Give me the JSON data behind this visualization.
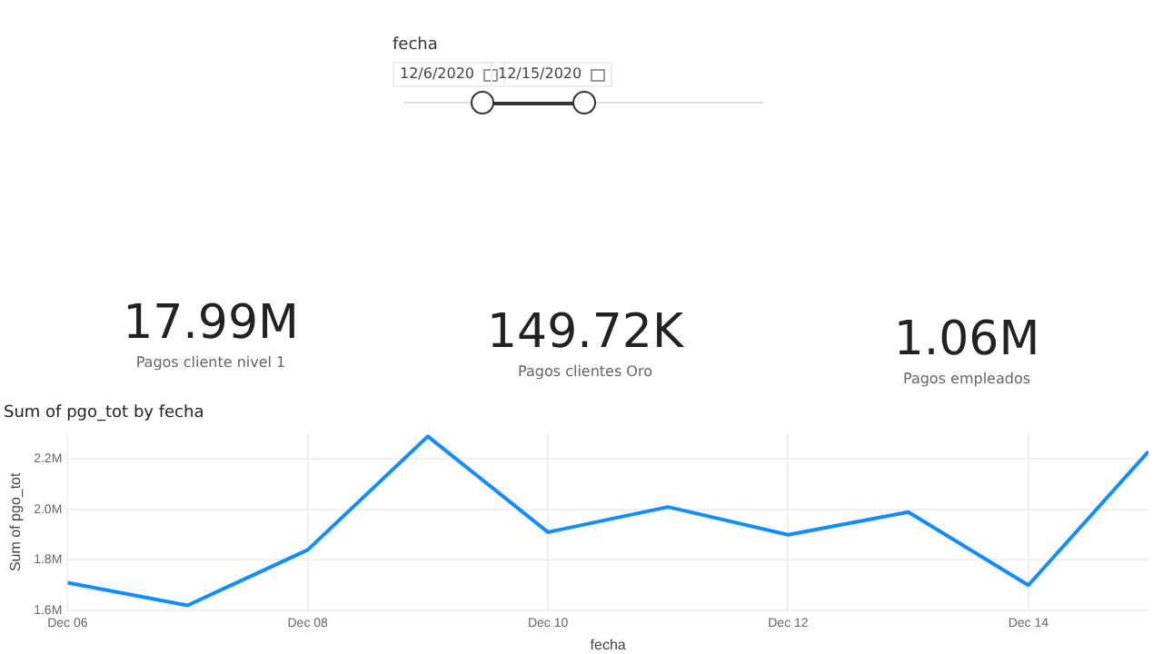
{
  "chart_data": [
    {
      "type": "other",
      "title": "fecha",
      "annotations": [
        "12/6/2020",
        "12/15/2020"
      ]
    },
    {
      "type": "other",
      "annotations": [
        "17.99M",
        "Pagos cliente nivel 1",
        "149.72K",
        "Pagos clientes Oro",
        "1.06M",
        "Pagos empleados"
      ]
    },
    {
      "type": "line",
      "title": "Sum of pgo_tot by fecha",
      "xlabel": "fecha",
      "ylabel": "Sum of pgo_tot",
      "x": [
        "2020-12-06",
        "2020-12-07",
        "2020-12-08",
        "2020-12-09",
        "2020-12-10",
        "2020-12-11",
        "2020-12-12",
        "2020-12-13",
        "2020-12-14",
        "2020-12-15"
      ],
      "series": [
        {
          "color": "#118dff",
          "values": [
            1.71,
            1.62,
            1.84,
            2.29,
            1.91,
            2.01,
            1.9,
            1.99,
            1.7,
            2.23
          ]
        }
      ],
      "xlim": [
        "2020-12-06",
        "2020-12-15"
      ],
      "xticks": [
        {
          "value": "2020-12-06",
          "label": "Dec 06"
        },
        {
          "value": "2020-12-08",
          "label": "Dec 08"
        },
        {
          "value": "2020-12-10",
          "label": "Dec 10"
        },
        {
          "value": "2020-12-12",
          "label": "Dec 12"
        },
        {
          "value": "2020-12-14",
          "label": "Dec 14"
        }
      ],
      "ylim": [
        1.6,
        2.3
      ],
      "yticks": [
        {
          "value": 1.6,
          "label": "1.6M"
        },
        {
          "value": 1.8,
          "label": "1.8M"
        },
        {
          "value": 2.0,
          "label": "2.0M"
        },
        {
          "value": 2.2,
          "label": "2.2M"
        }
      ],
      "grid": true,
      "legend": false,
      "marker": "none",
      "line_style": "solid"
    }
  ]
}
